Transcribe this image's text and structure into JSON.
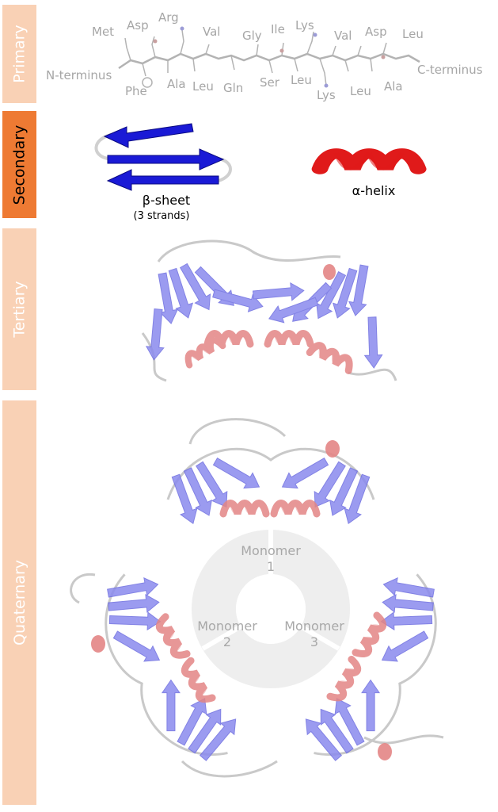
{
  "levels": {
    "primary": "Primary",
    "secondary": "Secondary",
    "tertiary": "Tertiary",
    "quaternary": "Quaternary"
  },
  "primary": {
    "n_terminus": "N-terminus",
    "c_terminus": "C-terminus",
    "residues_top": [
      "Met",
      "Asp",
      "Arg",
      "Val",
      "Gly",
      "Ile",
      "Lys",
      "Val",
      "Asp",
      "Leu"
    ],
    "residues_bottom": [
      "Phe",
      "Ala",
      "Leu",
      "Gln",
      "Ser",
      "Leu",
      "Lys",
      "Leu",
      "Ala"
    ]
  },
  "secondary": {
    "sheet_label": "β-sheet",
    "sheet_sublabel": "(3 strands)",
    "helix_label": "α-helix"
  },
  "quaternary": {
    "monomers": [
      {
        "word": "Monomer",
        "number": "1"
      },
      {
        "word": "Monomer",
        "number": "2"
      },
      {
        "word": "Monomer",
        "number": "3"
      }
    ]
  },
  "colors": {
    "sheet": "#1a1ad6",
    "helix": "#e01a1a",
    "sheet_faded": "#7b7be8",
    "helix_faded": "#e88a8a",
    "band_pale": "#f9d1b5",
    "band_active": "#ee7a33",
    "residue_text": "#a6a6a6"
  }
}
